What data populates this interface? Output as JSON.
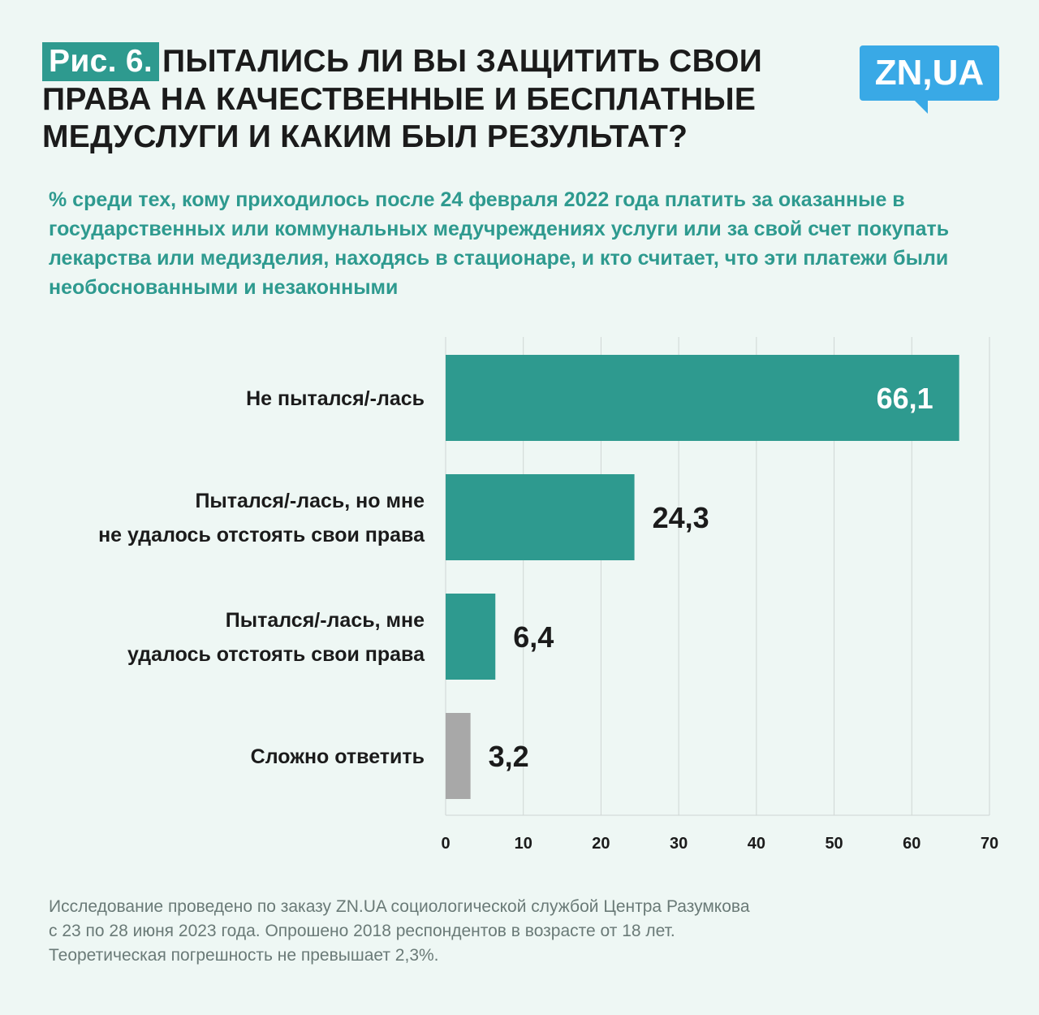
{
  "header": {
    "figure_tag": "Рис. 6.",
    "title": "ПЫТАЛИСЬ ЛИ ВЫ ЗАЩИТИТЬ СВОИ ПРАВА НА КАЧЕСТВЕННЫЕ И БЕСПЛАТНЫЕ МЕДУСЛУГИ И КАКИМ БЫЛ РЕЗУЛЬТАТ?",
    "logo": "ZN,UA",
    "subtitle": "% среди тех, кому приходилось после 24 февраля 2022 года платить за оказанные в государственных или коммунальных медучреждениях услуги или за свой счет покупать лекарства или медизделия, находясь в стационаре, и кто считает, что эти платежи были необоснованными и незаконными"
  },
  "colors": {
    "accent": "#2e9a8f",
    "gray_bar": "#a8a8a8",
    "logo": "#39a9e6"
  },
  "chart_data": {
    "type": "bar",
    "orientation": "horizontal",
    "categories": [
      [
        "Не пытался/-лась"
      ],
      [
        "Пытался/-лась, но мне",
        "не удалось отстоять свои права"
      ],
      [
        "Пытался/-лась, мне",
        "удалось отстоять свои права"
      ],
      [
        "Сложно ответить"
      ]
    ],
    "values": [
      66.1,
      24.3,
      6.4,
      3.2
    ],
    "value_labels": [
      "66,1",
      "24,3",
      "6,4",
      "3,2"
    ],
    "bar_colors": [
      "#2e9a8f",
      "#2e9a8f",
      "#2e9a8f",
      "#a8a8a8"
    ],
    "xlim": [
      0,
      70
    ],
    "xticks": [
      0,
      10,
      20,
      30,
      40,
      50,
      60,
      70
    ],
    "grid": true
  },
  "footnote": [
    "Исследование проведено по заказу ZN.UA социологической службой Центра Разумкова",
    "с 23 по 28 июня 2023 года. Опрошено 2018 респондентов в возрасте от 18 лет.",
    "Теоретическая погрешность не превышает 2,3%."
  ]
}
